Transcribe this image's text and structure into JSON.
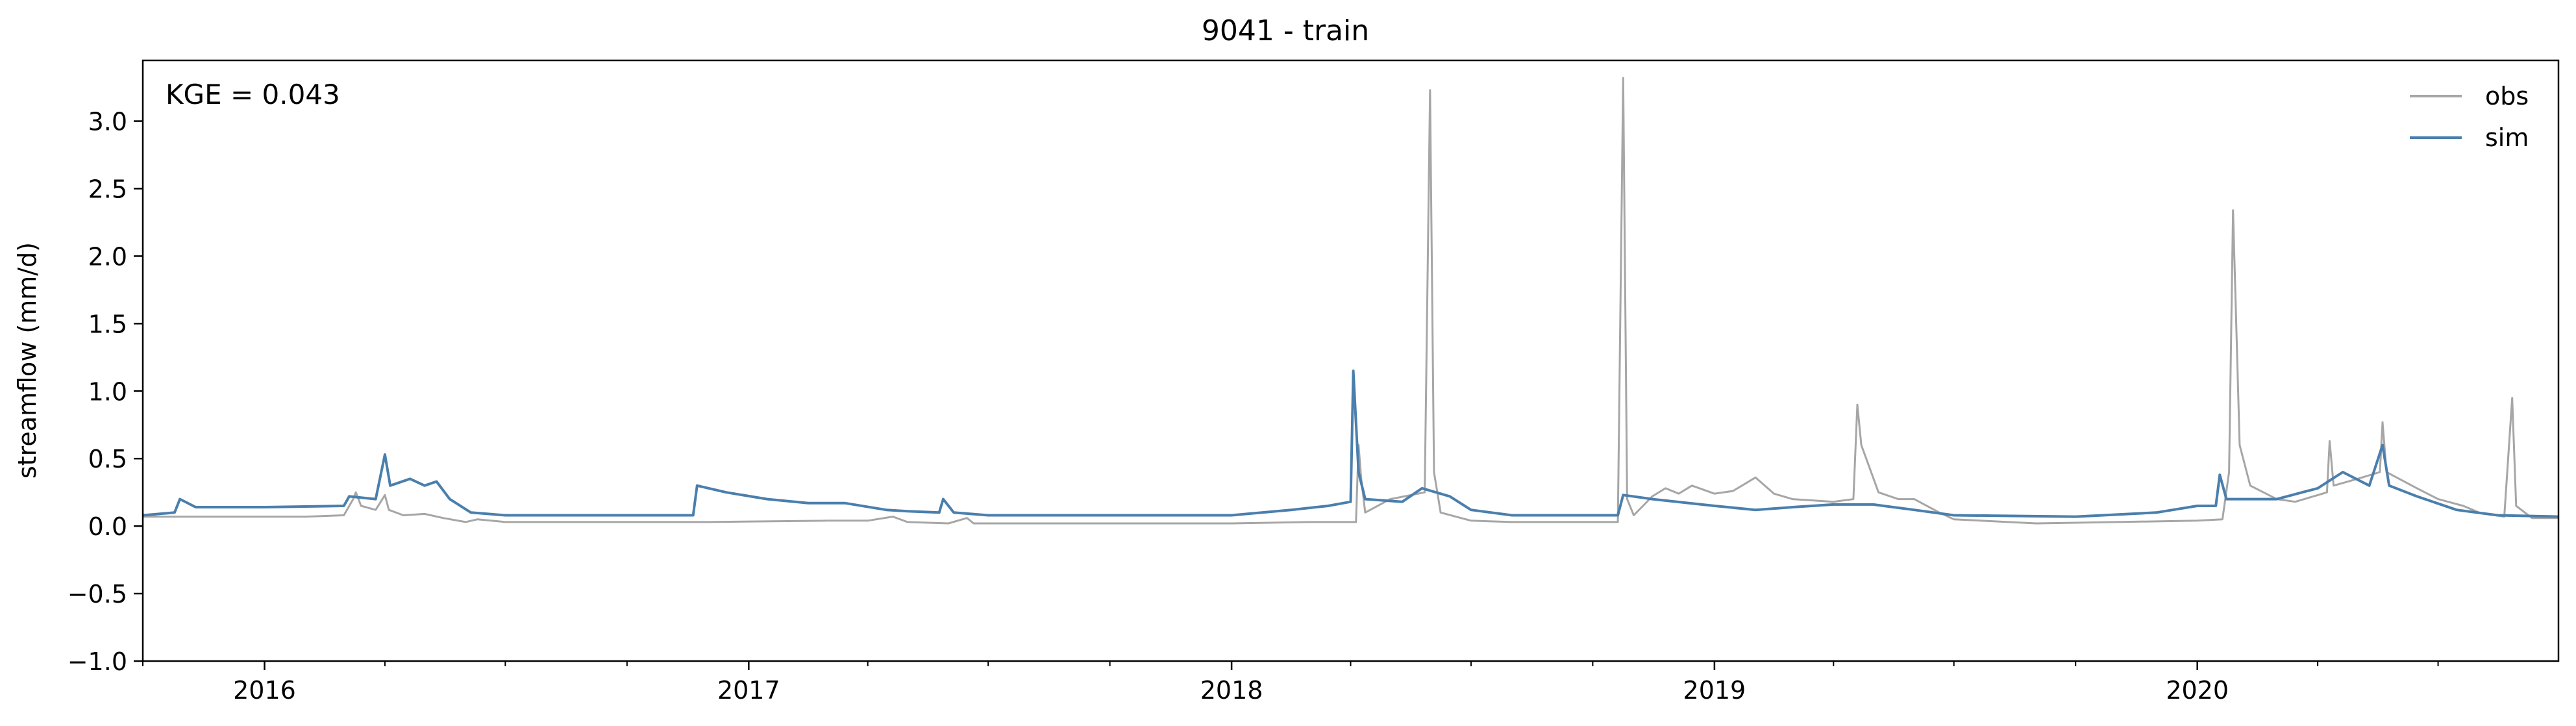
{
  "chart_data": {
    "type": "line",
    "title": "9041 - train",
    "xlabel": "",
    "ylabel": "streamflow (mm/d)",
    "annotation": "KGE = 0.043",
    "x_range": [
      "2015-10-01",
      "2020-09-30"
    ],
    "ylim": [
      -1.0,
      3.45
    ],
    "y_ticks": [
      -1.0,
      -0.5,
      0.0,
      0.5,
      1.0,
      1.5,
      2.0,
      2.5,
      3.0
    ],
    "y_tick_labels": [
      "−1.0",
      "−0.5",
      "0.0",
      "0.5",
      "1.0",
      "1.5",
      "2.0",
      "2.5",
      "3.0"
    ],
    "x_ticks": [
      "2016-01-01",
      "2017-01-01",
      "2018-01-01",
      "2019-01-01",
      "2020-01-01"
    ],
    "x_tick_labels": [
      "2016",
      "2017",
      "2018",
      "2019",
      "2020"
    ],
    "legend_position": "upper right",
    "grid": false,
    "series": [
      {
        "name": "obs",
        "color": "#a6a6a6",
        "points": [
          [
            "2015-10-01",
            0.07
          ],
          [
            "2015-11-01",
            0.07
          ],
          [
            "2015-12-01",
            0.07
          ],
          [
            "2016-01-01",
            0.07
          ],
          [
            "2016-02-01",
            0.07
          ],
          [
            "2016-03-01",
            0.08
          ],
          [
            "2016-03-08",
            0.2
          ],
          [
            "2016-03-10",
            0.25
          ],
          [
            "2016-03-14",
            0.15
          ],
          [
            "2016-03-25",
            0.12
          ],
          [
            "2016-04-01",
            0.23
          ],
          [
            "2016-04-04",
            0.12
          ],
          [
            "2016-04-15",
            0.08
          ],
          [
            "2016-05-01",
            0.09
          ],
          [
            "2016-05-15",
            0.06
          ],
          [
            "2016-06-01",
            0.03
          ],
          [
            "2016-06-10",
            0.05
          ],
          [
            "2016-07-01",
            0.03
          ],
          [
            "2016-09-01",
            0.03
          ],
          [
            "2016-11-01",
            0.03
          ],
          [
            "2016-12-01",
            0.03
          ],
          [
            "2017-03-01",
            0.04
          ],
          [
            "2017-04-01",
            0.04
          ],
          [
            "2017-04-20",
            0.07
          ],
          [
            "2017-05-01",
            0.03
          ],
          [
            "2017-06-01",
            0.02
          ],
          [
            "2017-06-15",
            0.06
          ],
          [
            "2017-06-20",
            0.02
          ],
          [
            "2017-09-01",
            0.02
          ],
          [
            "2018-01-01",
            0.02
          ],
          [
            "2018-03-01",
            0.03
          ],
          [
            "2018-04-05",
            0.03
          ],
          [
            "2018-04-07",
            0.6
          ],
          [
            "2018-04-09",
            0.35
          ],
          [
            "2018-04-12",
            0.1
          ],
          [
            "2018-05-01",
            0.2
          ],
          [
            "2018-05-27",
            0.25
          ],
          [
            "2018-05-31",
            3.23
          ],
          [
            "2018-06-03",
            0.4
          ],
          [
            "2018-06-08",
            0.1
          ],
          [
            "2018-07-01",
            0.04
          ],
          [
            "2018-08-01",
            0.03
          ],
          [
            "2018-10-01",
            0.03
          ],
          [
            "2018-10-20",
            0.03
          ],
          [
            "2018-10-24",
            3.32
          ],
          [
            "2018-10-27",
            0.2
          ],
          [
            "2018-11-01",
            0.08
          ],
          [
            "2018-11-15",
            0.22
          ],
          [
            "2018-11-25",
            0.28
          ],
          [
            "2018-12-05",
            0.24
          ],
          [
            "2018-12-15",
            0.3
          ],
          [
            "2019-01-01",
            0.24
          ],
          [
            "2019-01-15",
            0.26
          ],
          [
            "2019-02-01",
            0.36
          ],
          [
            "2019-02-15",
            0.24
          ],
          [
            "2019-03-01",
            0.2
          ],
          [
            "2019-04-01",
            0.18
          ],
          [
            "2019-04-16",
            0.2
          ],
          [
            "2019-04-19",
            0.9
          ],
          [
            "2019-04-22",
            0.6
          ],
          [
            "2019-05-05",
            0.25
          ],
          [
            "2019-05-20",
            0.2
          ],
          [
            "2019-06-01",
            0.2
          ],
          [
            "2019-06-20",
            0.1
          ],
          [
            "2019-07-01",
            0.05
          ],
          [
            "2019-09-01",
            0.02
          ],
          [
            "2019-11-01",
            0.03
          ],
          [
            "2020-01-01",
            0.04
          ],
          [
            "2020-01-20",
            0.05
          ],
          [
            "2020-01-25",
            0.4
          ],
          [
            "2020-01-28",
            2.34
          ],
          [
            "2020-02-02",
            0.6
          ],
          [
            "2020-02-10",
            0.3
          ],
          [
            "2020-03-01",
            0.2
          ],
          [
            "2020-03-15",
            0.18
          ],
          [
            "2020-04-08",
            0.25
          ],
          [
            "2020-04-10",
            0.63
          ],
          [
            "2020-04-13",
            0.3
          ],
          [
            "2020-05-01",
            0.35
          ],
          [
            "2020-05-18",
            0.4
          ],
          [
            "2020-05-20",
            0.77
          ],
          [
            "2020-05-23",
            0.4
          ],
          [
            "2020-06-15",
            0.28
          ],
          [
            "2020-07-01",
            0.2
          ],
          [
            "2020-07-20",
            0.15
          ],
          [
            "2020-08-01",
            0.1
          ],
          [
            "2020-08-20",
            0.07
          ],
          [
            "2020-08-26",
            0.95
          ],
          [
            "2020-08-29",
            0.15
          ],
          [
            "2020-09-10",
            0.06
          ],
          [
            "2020-09-30",
            0.06
          ]
        ]
      },
      {
        "name": "sim",
        "color": "#4a7fad",
        "points": [
          [
            "2015-10-01",
            0.08
          ],
          [
            "2015-10-25",
            0.1
          ],
          [
            "2015-10-29",
            0.2
          ],
          [
            "2015-11-10",
            0.14
          ],
          [
            "2016-01-01",
            0.14
          ],
          [
            "2016-03-01",
            0.15
          ],
          [
            "2016-03-05",
            0.22
          ],
          [
            "2016-03-25",
            0.2
          ],
          [
            "2016-04-01",
            0.53
          ],
          [
            "2016-04-05",
            0.3
          ],
          [
            "2016-04-20",
            0.35
          ],
          [
            "2016-05-01",
            0.3
          ],
          [
            "2016-05-10",
            0.33
          ],
          [
            "2016-05-20",
            0.2
          ],
          [
            "2016-06-05",
            0.1
          ],
          [
            "2016-07-01",
            0.08
          ],
          [
            "2016-11-20",
            0.08
          ],
          [
            "2016-11-23",
            0.3
          ],
          [
            "2016-12-15",
            0.25
          ],
          [
            "2017-01-15",
            0.2
          ],
          [
            "2017-02-15",
            0.17
          ],
          [
            "2017-03-15",
            0.17
          ],
          [
            "2017-04-15",
            0.12
          ],
          [
            "2017-05-01",
            0.11
          ],
          [
            "2017-05-25",
            0.1
          ],
          [
            "2017-05-28",
            0.2
          ],
          [
            "2017-06-05",
            0.1
          ],
          [
            "2017-07-01",
            0.08
          ],
          [
            "2017-10-01",
            0.08
          ],
          [
            "2018-01-01",
            0.08
          ],
          [
            "2018-02-15",
            0.12
          ],
          [
            "2018-03-15",
            0.15
          ],
          [
            "2018-04-01",
            0.18
          ],
          [
            "2018-04-03",
            1.15
          ],
          [
            "2018-04-07",
            0.4
          ],
          [
            "2018-04-12",
            0.2
          ],
          [
            "2018-05-10",
            0.18
          ],
          [
            "2018-05-25",
            0.28
          ],
          [
            "2018-06-15",
            0.22
          ],
          [
            "2018-07-01",
            0.12
          ],
          [
            "2018-08-01",
            0.08
          ],
          [
            "2018-10-20",
            0.08
          ],
          [
            "2018-10-24",
            0.23
          ],
          [
            "2018-11-15",
            0.2
          ],
          [
            "2019-01-01",
            0.15
          ],
          [
            "2019-02-01",
            0.12
          ],
          [
            "2019-03-01",
            0.14
          ],
          [
            "2019-04-01",
            0.16
          ],
          [
            "2019-05-01",
            0.16
          ],
          [
            "2019-06-01",
            0.12
          ],
          [
            "2019-07-01",
            0.08
          ],
          [
            "2019-10-01",
            0.07
          ],
          [
            "2019-12-01",
            0.1
          ],
          [
            "2020-01-01",
            0.15
          ],
          [
            "2020-01-15",
            0.15
          ],
          [
            "2020-01-18",
            0.38
          ],
          [
            "2020-01-23",
            0.2
          ],
          [
            "2020-03-01",
            0.2
          ],
          [
            "2020-04-01",
            0.28
          ],
          [
            "2020-04-20",
            0.4
          ],
          [
            "2020-05-10",
            0.3
          ],
          [
            "2020-05-20",
            0.6
          ],
          [
            "2020-05-25",
            0.3
          ],
          [
            "2020-06-15",
            0.22
          ],
          [
            "2020-07-15",
            0.12
          ],
          [
            "2020-08-15",
            0.08
          ],
          [
            "2020-09-30",
            0.07
          ]
        ]
      }
    ]
  }
}
